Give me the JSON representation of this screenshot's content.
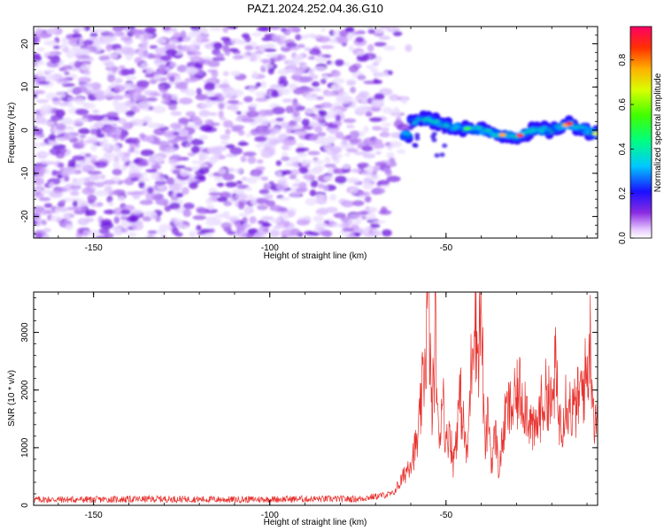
{
  "figure": {
    "title": "PAZ1.2024.252.04.36.G10"
  },
  "chart_data": [
    {
      "type": "heatmap",
      "xlabel": "Height of straight line (km)",
      "ylabel": "Frequency (Hz)",
      "xlim": [
        -167,
        -7
      ],
      "ylim": [
        -25,
        24
      ],
      "xticks": [
        -150,
        -100,
        -50
      ],
      "yticks": [
        20,
        10,
        0,
        -10,
        -20
      ],
      "colorbar": {
        "label": "Normalized spectral amplitude",
        "range": [
          0,
          0.95
        ],
        "ticks": [
          0.0,
          0.2,
          0.4,
          0.6,
          0.8
        ],
        "colormap": "rainbow",
        "low_color": "#ffffff",
        "high_color": "#ff0066"
      },
      "description_values": {
        "noise_region_x": [
          -167,
          -60
        ],
        "signal_ridge": [
          {
            "x": -60,
            "y": 2
          },
          {
            "x": -55,
            "y": 2.5
          },
          {
            "x": -50,
            "y": 1
          },
          {
            "x": -45,
            "y": 0.5
          },
          {
            "x": -40,
            "y": 0
          },
          {
            "x": -35,
            "y": -1
          },
          {
            "x": -30,
            "y": -1.5
          },
          {
            "x": -25,
            "y": 0
          },
          {
            "x": -20,
            "y": 0
          },
          {
            "x": -15,
            "y": 1.5
          },
          {
            "x": -10,
            "y": 0
          },
          {
            "x": -7,
            "y": -1
          }
        ]
      }
    },
    {
      "type": "line",
      "xlabel": "Height of straight line (km)",
      "ylabel": "SNR (10 * v/v)",
      "xlim": [
        -167,
        -7
      ],
      "ylim": [
        0,
        3700
      ],
      "xticks": [
        -150,
        -100,
        -50
      ],
      "yticks": [
        0,
        1000,
        2000,
        3000
      ],
      "series_color": "#e8322e",
      "series": [
        {
          "x": [
            -167,
            -150,
            -130,
            -110,
            -90,
            -75,
            -65,
            -62,
            -60,
            -58,
            -56,
            -55,
            -54,
            -53,
            -52,
            -51,
            -50,
            -49,
            -48,
            -46,
            -44,
            -42,
            -41,
            -40,
            -39,
            -38,
            -37,
            -36,
            -35,
            -33,
            -31,
            -29,
            -27,
            -25,
            -23,
            -21,
            -20,
            -19,
            -18,
            -17,
            -16,
            -14,
            -12,
            -10,
            -9,
            -8,
            -7
          ],
          "y": [
            100,
            100,
            110,
            100,
            110,
            110,
            200,
            500,
            800,
            1100,
            2500,
            3600,
            1500,
            3000,
            900,
            2200,
            1000,
            1400,
            700,
            1900,
            800,
            3600,
            2600,
            3500,
            900,
            1600,
            700,
            1300,
            600,
            1600,
            1700,
            2000,
            1700,
            1200,
            1700,
            2000,
            1600,
            2400,
            1500,
            1500,
            1900,
            1600,
            1900,
            2300,
            2900,
            1500,
            1700
          ]
        }
      ]
    }
  ]
}
